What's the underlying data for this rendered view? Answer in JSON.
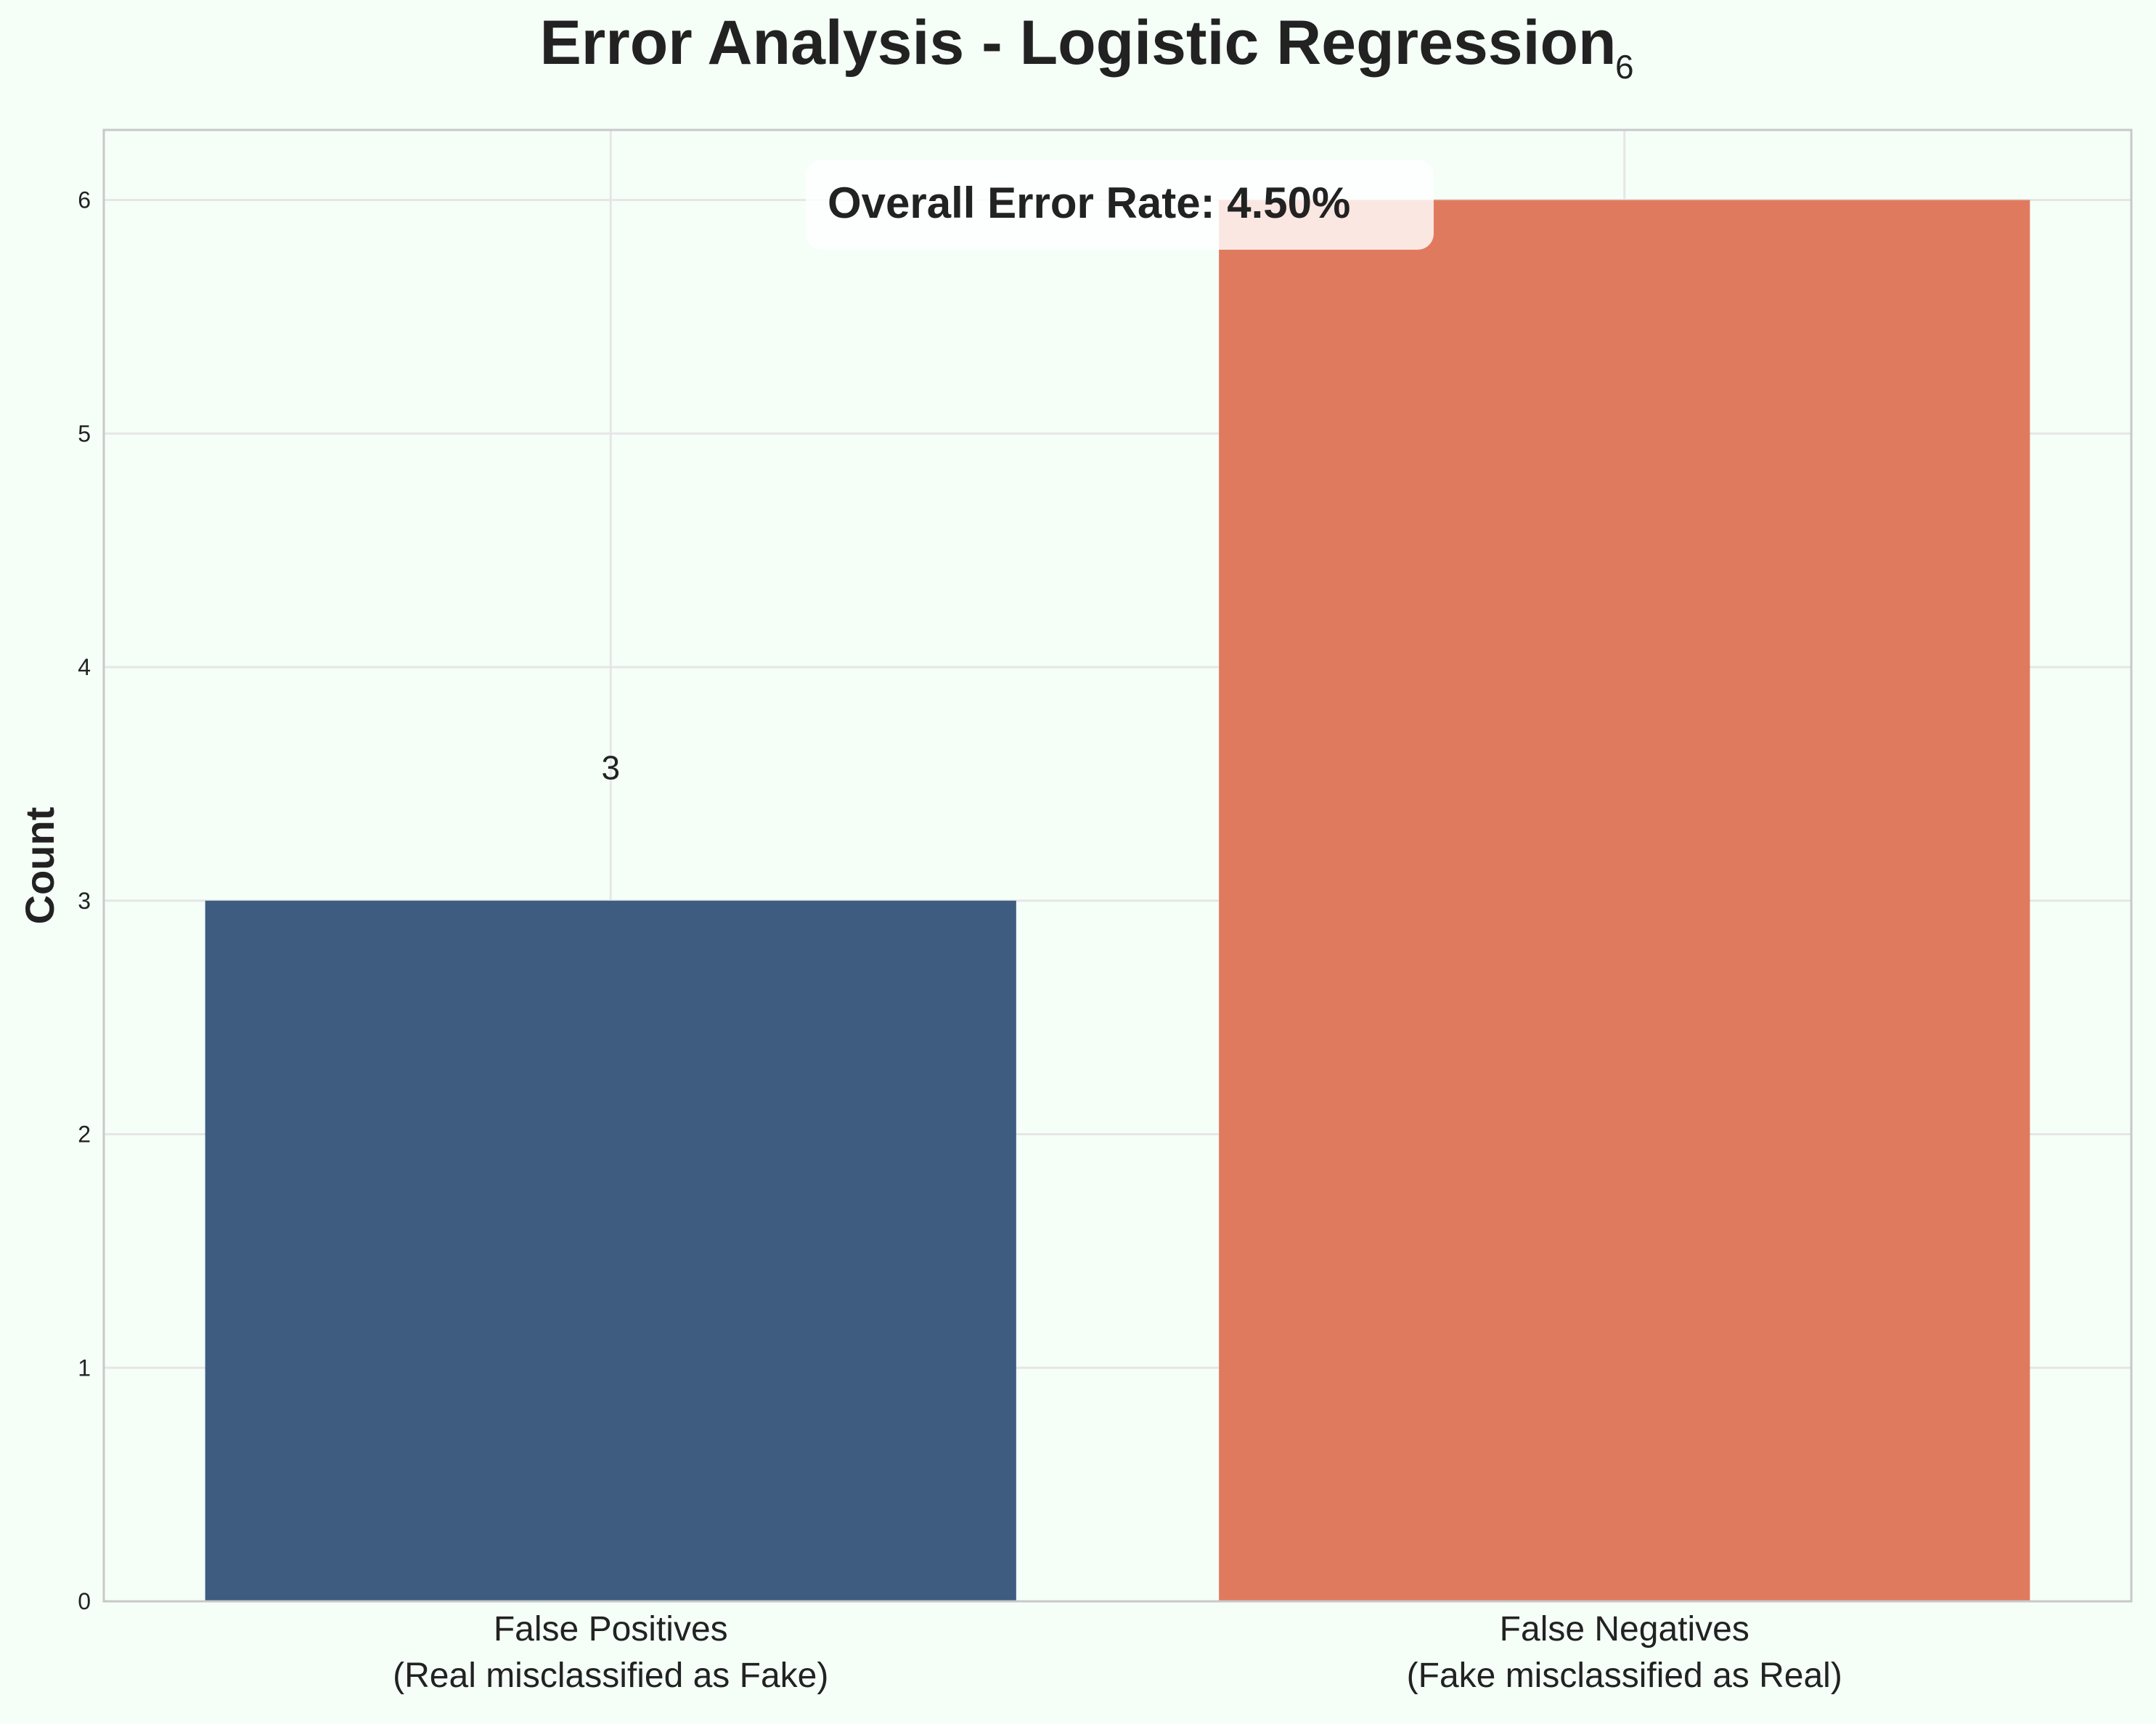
{
  "chart_data": {
    "type": "bar",
    "title": "Error Analysis - Logistic Regression",
    "xlabel": "",
    "ylabel": "Count",
    "categories": [
      [
        "False Positives",
        "(Real misclassified as Fake)"
      ],
      [
        "False Negatives",
        "(Fake misclassified as Real)"
      ]
    ],
    "values": [
      3,
      6
    ],
    "value_labels": [
      "3",
      "6"
    ],
    "colors": [
      "#3e5c80",
      "#e07a5f"
    ],
    "ylim": [
      0,
      6.3
    ],
    "yticks": [
      0,
      1,
      2,
      3,
      4,
      5,
      6
    ],
    "grid": true,
    "annotation": "Overall Error Rate: 4.50%"
  },
  "colors": {
    "background": "#f5fff8",
    "axes_frame": "#c8c8c8",
    "grid": "#e6e6e6",
    "text": "#222222",
    "annotation_box": "#ffffff"
  }
}
